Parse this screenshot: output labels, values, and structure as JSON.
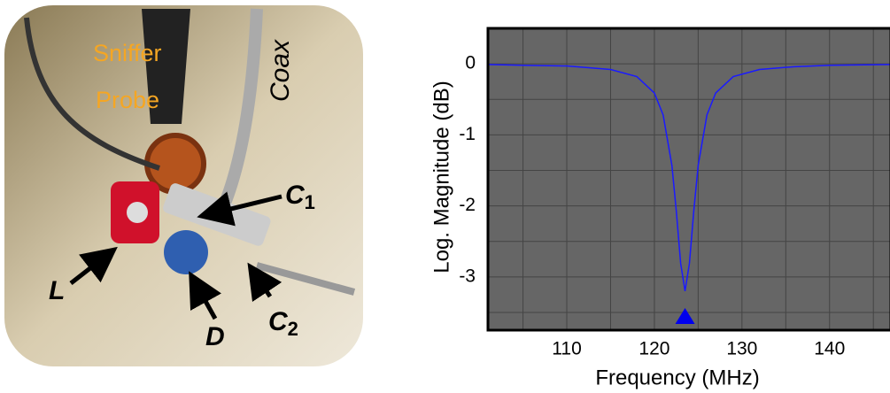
{
  "photo": {
    "labels": {
      "sniffer": "Sniffer",
      "probe": "Probe",
      "coax": "Coax",
      "c1": {
        "text": "C",
        "sub": "1"
      },
      "c2": {
        "text": "C",
        "sub": "2"
      },
      "l": "L",
      "d": "D"
    }
  },
  "chart_data": {
    "type": "line",
    "x_label": "Frequency (MHz)",
    "y_label": "Log. Magnitude (dB)",
    "x": [
      101,
      105,
      110,
      115,
      118,
      120,
      121,
      122,
      122.5,
      123,
      123.5,
      124,
      124.5,
      125,
      126,
      127,
      129,
      132,
      136,
      140,
      147
    ],
    "series": [
      {
        "color": "#1a1aff",
        "values": [
          -0.01,
          -0.02,
          -0.03,
          -0.08,
          -0.18,
          -0.41,
          -0.72,
          -1.43,
          -2.07,
          -2.81,
          -3.2,
          -2.81,
          -2.07,
          -1.43,
          -0.72,
          -0.41,
          -0.18,
          -0.08,
          -0.04,
          -0.02,
          -0.01
        ]
      }
    ],
    "marker": {
      "x": 123.5,
      "y": -3.55,
      "color": "#0000ee"
    },
    "xlim": [
      101,
      147
    ],
    "ylim": [
      -3.75,
      0.5
    ],
    "xticks": [
      110,
      120,
      130,
      140
    ],
    "yticks": [
      0,
      -1,
      -2,
      -3
    ],
    "xgrid_minor": [
      105,
      115,
      125,
      135,
      145
    ],
    "ygrid_minor": [
      0.5,
      -0.5,
      -1.5,
      -2.5,
      -3.5
    ],
    "grid": true,
    "background": "#666666"
  }
}
